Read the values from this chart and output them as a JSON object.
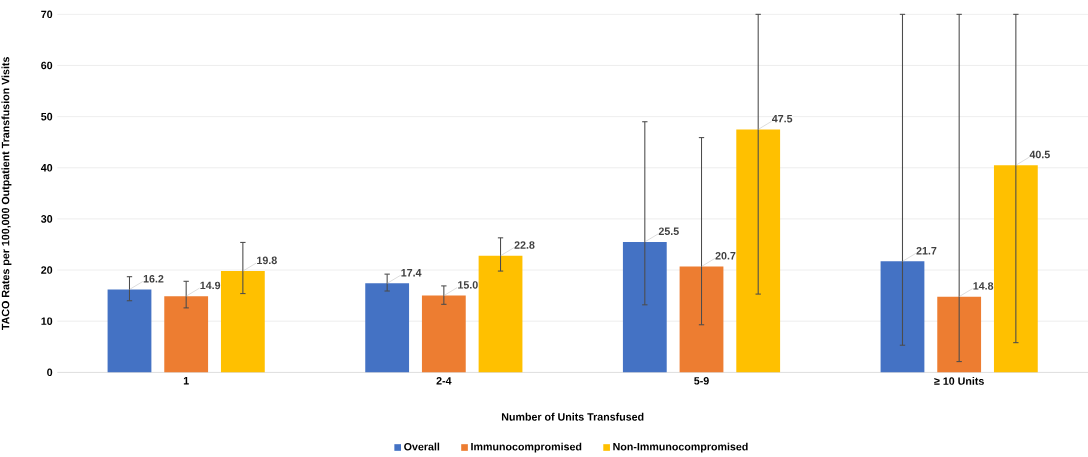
{
  "chart_data": {
    "type": "bar",
    "xlabel": "Number of Units Transfused",
    "ylabel": "TACO Rates per 100,000 Outpatient Transfusion Visits",
    "categories": [
      "1",
      "2-4",
      "5-9",
      "≥ 10 Units"
    ],
    "series": [
      {
        "name": "Overall",
        "color": "#4472c4",
        "values": [
          16.2,
          17.4,
          25.5,
          21.7
        ],
        "value_labels": [
          "16.2",
          "17.4",
          "25.5",
          "21.7"
        ],
        "errors": [
          [
            14.0,
            18.7
          ],
          [
            15.9,
            19.2
          ],
          [
            13.2,
            49.0
          ],
          [
            5.3,
            70
          ]
        ]
      },
      {
        "name": "Immunocompromised",
        "color": "#ed7d31",
        "values": [
          14.9,
          15.0,
          20.7,
          14.8
        ],
        "value_labels": [
          "14.9",
          "15.0",
          "20.7",
          "14.8"
        ],
        "errors": [
          [
            12.6,
            17.8
          ],
          [
            13.3,
            16.9
          ],
          [
            9.3,
            45.9
          ],
          [
            2.1,
            70
          ]
        ]
      },
      {
        "name": "Non-Immunocompromised",
        "color": "#ffc000",
        "values": [
          19.8,
          22.8,
          47.5,
          40.5
        ],
        "value_labels": [
          "19.8",
          "22.8",
          "47.5",
          "40.5"
        ],
        "errors": [
          [
            15.4,
            25.4
          ],
          [
            19.8,
            26.3
          ],
          [
            15.3,
            70
          ],
          [
            5.8,
            70
          ]
        ]
      }
    ],
    "ylim": [
      0,
      70
    ],
    "yticks": [
      0,
      10,
      20,
      30,
      40,
      50,
      60,
      70
    ],
    "grid": "y",
    "legend": "bottom"
  }
}
